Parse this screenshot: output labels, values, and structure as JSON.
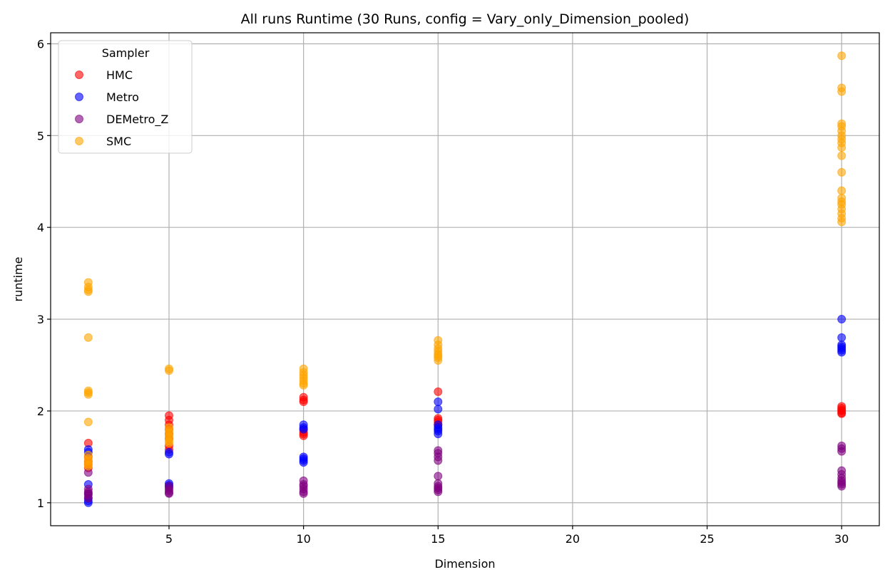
{
  "chart_data": {
    "type": "scatter",
    "title": "All runs Runtime (30 Runs, config = Vary_only_Dimension_pooled)",
    "xlabel": "Dimension",
    "ylabel": "runtime",
    "xlim": [
      0.6,
      31.4
    ],
    "ylim": [
      0.75,
      6.12
    ],
    "xticks": [
      5,
      10,
      15,
      20,
      25,
      30
    ],
    "yticks": [
      1,
      2,
      3,
      4,
      5,
      6
    ],
    "grid": true,
    "legend": {
      "title": "Sampler",
      "position": "upper-left"
    },
    "series": [
      {
        "name": "HMC",
        "color": "#ff0000",
        "points": [
          [
            2,
            1.65
          ],
          [
            2,
            1.5
          ],
          [
            2,
            1.45
          ],
          [
            2,
            1.42
          ],
          [
            2,
            1.38
          ],
          [
            5,
            1.95
          ],
          [
            5,
            1.9
          ],
          [
            5,
            1.85
          ],
          [
            5,
            1.8
          ],
          [
            5,
            1.75
          ],
          [
            5,
            1.7
          ],
          [
            5,
            1.62
          ],
          [
            5,
            1.58
          ],
          [
            10,
            2.15
          ],
          [
            10,
            2.12
          ],
          [
            10,
            2.1
          ],
          [
            10,
            1.8
          ],
          [
            10,
            1.77
          ],
          [
            10,
            1.75
          ],
          [
            10,
            1.73
          ],
          [
            15,
            2.21
          ],
          [
            15,
            1.92
          ],
          [
            15,
            1.9
          ],
          [
            15,
            1.88
          ],
          [
            15,
            1.85
          ],
          [
            30,
            2.05
          ],
          [
            30,
            2.03
          ],
          [
            30,
            2.01
          ],
          [
            30,
            2.0
          ],
          [
            30,
            1.98
          ],
          [
            30,
            1.97
          ]
        ]
      },
      {
        "name": "Metro",
        "color": "#0000ff",
        "points": [
          [
            2,
            1.58
          ],
          [
            2,
            1.55
          ],
          [
            2,
            1.2
          ],
          [
            2,
            1.1
          ],
          [
            2,
            1.05
          ],
          [
            2,
            1.02
          ],
          [
            2,
            1.0
          ],
          [
            5,
            1.55
          ],
          [
            5,
            1.53
          ],
          [
            5,
            1.21
          ],
          [
            5,
            1.19
          ],
          [
            5,
            1.17
          ],
          [
            10,
            1.85
          ],
          [
            10,
            1.82
          ],
          [
            10,
            1.8
          ],
          [
            10,
            1.5
          ],
          [
            10,
            1.48
          ],
          [
            10,
            1.46
          ],
          [
            10,
            1.44
          ],
          [
            15,
            2.1
          ],
          [
            15,
            2.02
          ],
          [
            15,
            1.85
          ],
          [
            15,
            1.82
          ],
          [
            15,
            1.8
          ],
          [
            15,
            1.78
          ],
          [
            15,
            1.75
          ],
          [
            30,
            3.0
          ],
          [
            30,
            2.8
          ],
          [
            30,
            2.72
          ],
          [
            30,
            2.7
          ],
          [
            30,
            2.68
          ],
          [
            30,
            2.66
          ],
          [
            30,
            2.64
          ]
        ]
      },
      {
        "name": "DEMetro_Z",
        "color": "#800080",
        "points": [
          [
            2,
            1.33
          ],
          [
            2,
            1.15
          ],
          [
            2,
            1.12
          ],
          [
            2,
            1.1
          ],
          [
            2,
            1.08
          ],
          [
            2,
            1.05
          ],
          [
            5,
            1.18
          ],
          [
            5,
            1.15
          ],
          [
            5,
            1.13
          ],
          [
            5,
            1.11
          ],
          [
            5,
            1.1
          ],
          [
            10,
            1.24
          ],
          [
            10,
            1.2
          ],
          [
            10,
            1.18
          ],
          [
            10,
            1.15
          ],
          [
            10,
            1.12
          ],
          [
            10,
            1.1
          ],
          [
            15,
            1.57
          ],
          [
            15,
            1.54
          ],
          [
            15,
            1.5
          ],
          [
            15,
            1.46
          ],
          [
            15,
            1.29
          ],
          [
            15,
            1.21
          ],
          [
            15,
            1.18
          ],
          [
            15,
            1.16
          ],
          [
            15,
            1.14
          ],
          [
            15,
            1.12
          ],
          [
            30,
            1.62
          ],
          [
            30,
            1.59
          ],
          [
            30,
            1.56
          ],
          [
            30,
            1.35
          ],
          [
            30,
            1.31
          ],
          [
            30,
            1.27
          ],
          [
            30,
            1.24
          ],
          [
            30,
            1.22
          ],
          [
            30,
            1.2
          ],
          [
            30,
            1.18
          ]
        ]
      },
      {
        "name": "SMC",
        "color": "#ffa500",
        "points": [
          [
            2,
            3.4
          ],
          [
            2,
            3.35
          ],
          [
            2,
            3.32
          ],
          [
            2,
            3.3
          ],
          [
            2,
            2.8
          ],
          [
            2,
            2.22
          ],
          [
            2,
            2.2
          ],
          [
            2,
            2.18
          ],
          [
            2,
            1.88
          ],
          [
            2,
            1.52
          ],
          [
            2,
            1.48
          ],
          [
            2,
            1.45
          ],
          [
            2,
            1.42
          ],
          [
            2,
            1.4
          ],
          [
            5,
            2.46
          ],
          [
            5,
            2.44
          ],
          [
            5,
            1.82
          ],
          [
            5,
            1.79
          ],
          [
            5,
            1.76
          ],
          [
            5,
            1.73
          ],
          [
            5,
            1.7
          ],
          [
            5,
            1.67
          ],
          [
            5,
            1.65
          ],
          [
            10,
            2.46
          ],
          [
            10,
            2.42
          ],
          [
            10,
            2.39
          ],
          [
            10,
            2.36
          ],
          [
            10,
            2.33
          ],
          [
            10,
            2.3
          ],
          [
            10,
            2.28
          ],
          [
            15,
            2.77
          ],
          [
            15,
            2.72
          ],
          [
            15,
            2.68
          ],
          [
            15,
            2.65
          ],
          [
            15,
            2.62
          ],
          [
            15,
            2.6
          ],
          [
            15,
            2.58
          ],
          [
            15,
            2.55
          ],
          [
            30,
            5.87
          ],
          [
            30,
            5.52
          ],
          [
            30,
            5.48
          ],
          [
            30,
            5.13
          ],
          [
            30,
            5.1
          ],
          [
            30,
            5.05
          ],
          [
            30,
            5.0
          ],
          [
            30,
            4.96
          ],
          [
            30,
            4.92
          ],
          [
            30,
            4.87
          ],
          [
            30,
            4.78
          ],
          [
            30,
            4.6
          ],
          [
            30,
            4.4
          ],
          [
            30,
            4.32
          ],
          [
            30,
            4.28
          ],
          [
            30,
            4.25
          ],
          [
            30,
            4.2
          ],
          [
            30,
            4.15
          ],
          [
            30,
            4.1
          ],
          [
            30,
            4.06
          ]
        ]
      }
    ]
  }
}
